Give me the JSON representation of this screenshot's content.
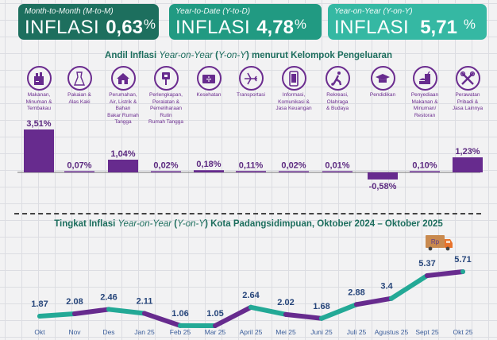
{
  "cards": [
    {
      "subtitle": "Month-to-Month (M-to-M)",
      "label": "INFLASI",
      "value": "0,63",
      "unit": "%",
      "color": "#1d6f5e"
    },
    {
      "subtitle": "Year-to-Date (Y-to-D)",
      "label": "INFLASI",
      "value": "4,78",
      "unit": "%",
      "color": "#219a82"
    },
    {
      "subtitle": "Year-on-Year (Y-on-Y)",
      "label": "INFLASI",
      "value": "5,71",
      "unit": "%",
      "color": "#35b8a3"
    }
  ],
  "section1": {
    "title_pre": "Andil Inflasi ",
    "title_italic": "Year-on-Year",
    "title_mid": " (",
    "title_italic2": "Y-on-Y",
    "title_post": ") menurut Kelompok Pengeluaran"
  },
  "section2": {
    "title_pre": "Tingkat Inflasi ",
    "title_italic": "Year-on-Year",
    "title_mid": " (",
    "title_italic2": "Y-on-Y",
    "title_post": ") Kota Padangsidimpuan, Oktober 2024 –  Oktober 2025"
  },
  "colors": {
    "purple": "#672b8e",
    "teal": "#23a996",
    "dark_teal": "#1c6d5d"
  },
  "chart_data": [
    {
      "type": "bar",
      "title": "Andil Inflasi Year-on-Year (Y-on-Y) menurut Kelompok Pengeluaran",
      "categories": [
        "Makanan, Minuman & Tembakau",
        "Pakaian & Alas Kaki",
        "Perumahan, Air, Listrik & Bahan Bakar Rumah Tangga",
        "Perlengkapan, Peralatan & Pemeliharaan Rutin Rumah Tangga",
        "Kesehatan",
        "Transportasi",
        "Informasi, Komunikasi & Jasa Keuangan",
        "Rekreasi, Olahraga & Budaya",
        "Pendidikan",
        "Penyediaan Makanan & Minuman/ Restoran",
        "Perawatan Pribadi & Jasa Lainnya"
      ],
      "category_lines": [
        [
          "Makanan,",
          "Minuman &",
          "Tembakau"
        ],
        [
          "Pakaian &",
          "Alas Kaki"
        ],
        [
          "Perumahan,",
          "Air, Listrik &",
          "Bahan",
          "Bakar Rumah",
          "Tangga"
        ],
        [
          "Perlengkapan,",
          "Peralatan &",
          "Pemeliharaan",
          "Rutin",
          "Rumah Tangga"
        ],
        [
          "Kesehatan"
        ],
        [
          "Transportasi"
        ],
        [
          "Informasi,",
          "Komunikasi &",
          "Jasa Keuangan"
        ],
        [
          "Rekreasi,",
          "Olahraga",
          "& Budaya"
        ],
        [
          "Pendidikan"
        ],
        [
          "Penyediaan",
          "Makanan &",
          "Minuman/",
          "Restoran"
        ],
        [
          "Perawatan",
          "Pribadi &",
          "Jasa Lainnya"
        ]
      ],
      "icons": [
        "grocery-bag-icon",
        "dress-icon",
        "house-icon",
        "plug-icon",
        "medical-kit-icon",
        "airplane-icon",
        "smartphone-icon",
        "football-player-icon",
        "graduation-cap-icon",
        "fast-food-icon",
        "scissors-comb-icon"
      ],
      "values": [
        3.51,
        0.07,
        1.04,
        0.02,
        0.18,
        0.11,
        0.02,
        0.01,
        -0.58,
        0.1,
        1.23
      ],
      "labels": [
        "3,51%",
        "0,07%",
        "1,04%",
        "0,02%",
        "0,18%",
        "0,11%",
        "0,02%",
        "0,01%",
        "-0,58%",
        "0,10%",
        "1,23%"
      ],
      "xlabel": "",
      "ylabel": "",
      "ylim": [
        -0.58,
        3.51
      ],
      "grid": false
    },
    {
      "type": "line",
      "title": "Tingkat Inflasi Year-on-Year (Y-on-Y) Kota Padangsidimpuan, Oktober 2024 – Oktober 2025",
      "x": [
        "Okt",
        "Nov",
        "Des",
        "Jan 25",
        "Feb 25",
        "Mar 25",
        "April 25",
        "Mei 25",
        "Juni 25",
        "Juli 25",
        "Agustus 25",
        "Sept 25",
        "Okt 25"
      ],
      "values": [
        1.87,
        2.08,
        2.46,
        2.11,
        1.06,
        1.05,
        2.64,
        2.02,
        1.68,
        2.88,
        3.4,
        5.37,
        5.71
      ],
      "labels": [
        "1.87",
        "2.08",
        "2.46",
        "2.11",
        "1.06",
        "1.05",
        "2.64",
        "2.02",
        "1.68",
        "2.88",
        "3.4",
        "5.37",
        "5.71"
      ],
      "xlabel": "",
      "ylabel": "",
      "ylim": [
        1.05,
        5.71
      ],
      "grid": false,
      "annotation": {
        "icon": "delivery-truck-icon",
        "text": "Rp"
      }
    }
  ]
}
